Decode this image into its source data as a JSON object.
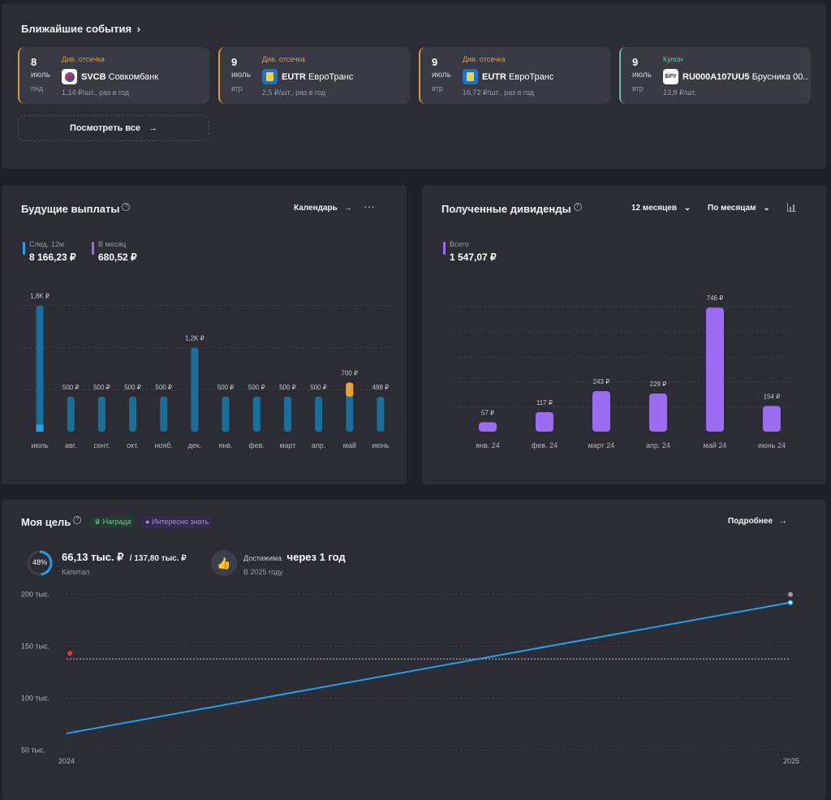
{
  "events": {
    "title": "Ближайшие события",
    "see_all": "Посмотреть все",
    "cards": [
      {
        "day": "8",
        "month": "июль",
        "weekday": "пнд",
        "type": "Див. отсечка",
        "ticker": "SVCB",
        "company": "Совкомбанк",
        "amount": "1,14 ₽/шт., раз в год",
        "accent": "#d99a3e",
        "logo": "sovcombank-logo"
      },
      {
        "day": "9",
        "month": "июль",
        "weekday": "втр",
        "type": "Див. отсечка",
        "ticker": "EUTR",
        "company": "ЕвроТранс",
        "amount": "2,5 ₽/шт., раз в год",
        "accent": "#d99a3e",
        "logo": "eurotrans-logo"
      },
      {
        "day": "9",
        "month": "июль",
        "weekday": "втр",
        "type": "Див. отсечка",
        "ticker": "EUTR",
        "company": "ЕвроТранс",
        "amount": "16,72 ₽/шт., раз в год",
        "accent": "#d99a3e",
        "logo": "eurotrans-logo"
      },
      {
        "day": "9",
        "month": "июль",
        "weekday": "втр",
        "type": "Купон",
        "ticker": "RU000A107UU5",
        "company": "Брусника 00...",
        "amount": "13,8 ₽/шт.",
        "accent": "#59c9a0",
        "logo_text": "БРУ",
        "logo": "brusnika-logo"
      }
    ]
  },
  "future": {
    "title": "Будущие выплаты",
    "calendar": "Календарь",
    "next12_label": "След. 12м",
    "next12_value": "8 166,23 ₽",
    "month_label": "В месяц",
    "month_value": "680,52 ₽"
  },
  "received": {
    "title": "Полученные дивиденды",
    "period": "12 месяцев",
    "group": "По месяцам",
    "total_label": "Всего",
    "total_value": "1 547,07 ₽"
  },
  "goal": {
    "title": "Моя цель",
    "chip_reward": "Награда",
    "chip_info": "Интересно знать",
    "more": "Подробнее",
    "percent": "48%",
    "progress": 0.48,
    "capital": "66,13 тыс. ₽",
    "target": "/ 137,80 тыс. ₽",
    "capital_label": "Капитал",
    "reach_label": "Достижима",
    "reach_value": "через 1 год",
    "reach_year": "В 2025 году"
  },
  "chart_data": [
    {
      "type": "bar",
      "title": "Будущие выплаты",
      "categories": [
        "июль",
        "авг.",
        "сент.",
        "окт.",
        "нояб.",
        "дек.",
        "янв.",
        "фев.",
        "март",
        "апр.",
        "май",
        "июнь"
      ],
      "series": [
        {
          "values": [
            1800,
            500,
            500,
            500,
            500,
            1200,
            500,
            500,
            500,
            500,
            700,
            498
          ],
          "color": "#1a6e9a"
        }
      ],
      "highlights": [
        {
          "category": "июль",
          "value": 100,
          "color": "#1fa3e8"
        },
        {
          "category": "май",
          "value": 200,
          "color": "#f0a030"
        }
      ],
      "labels": [
        "1,8K ₽",
        "500 ₽",
        "500 ₽",
        "500 ₽",
        "500 ₽",
        "1,2K ₽",
        "500 ₽",
        "500 ₽",
        "500 ₽",
        "500 ₽",
        "700 ₽",
        "498 ₽"
      ],
      "ylim": [
        0,
        1900
      ]
    },
    {
      "type": "bar",
      "title": "Полученные дивиденды",
      "categories": [
        "янв. 24",
        "фев. 24",
        "март 24",
        "апр. 24",
        "май 24",
        "июнь 24"
      ],
      "series": [
        {
          "values": [
            57,
            117,
            243,
            229,
            746,
            154
          ],
          "color": "#9b6bf2"
        }
      ],
      "labels": [
        "57 ₽",
        "117 ₽",
        "243 ₽",
        "229 ₽",
        "746 ₽",
        "154 ₽"
      ],
      "ylim": [
        0,
        800
      ]
    },
    {
      "type": "line",
      "title": "Моя цель",
      "x": [
        "2024",
        "2025"
      ],
      "series": [
        {
          "values": [
            66130,
            192000
          ],
          "color": "#1fa3e8"
        }
      ],
      "target": 137800,
      "yticks": [
        "50 тыс.",
        "100 тыс.",
        "150 тыс.",
        "200 тыс."
      ],
      "ytick_values": [
        50000,
        100000,
        150000,
        200000
      ],
      "ylim": [
        45000,
        205000
      ]
    }
  ]
}
